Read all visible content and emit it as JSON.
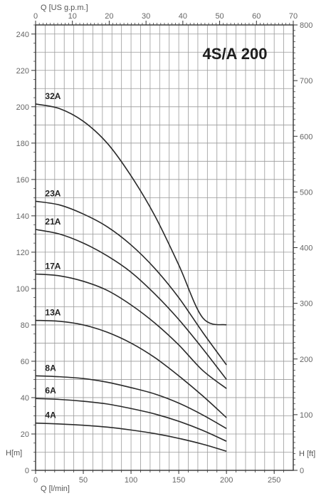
{
  "chart_data": {
    "type": "line",
    "title": "4S/A 200",
    "x_bottom": {
      "label": "Q [l/min]",
      "range": [
        0,
        270
      ],
      "ticks": [
        0,
        50,
        100,
        150,
        200,
        250
      ]
    },
    "x_top": {
      "label": "Q [US g.p.m.]",
      "range": [
        0,
        70
      ],
      "ticks": [
        0,
        10,
        20,
        30,
        40,
        50,
        60,
        70
      ]
    },
    "y_left": {
      "label": "H[m]",
      "range": [
        0,
        245
      ],
      "ticks": [
        0,
        20,
        40,
        60,
        80,
        100,
        120,
        140,
        160,
        180,
        200,
        220,
        240
      ]
    },
    "y_right": {
      "label": "H [ft]",
      "range": [
        0,
        800
      ],
      "ticks": [
        0,
        100,
        200,
        300,
        400,
        500,
        600,
        700,
        800
      ]
    },
    "grid": true,
    "series": [
      {
        "name": "32A",
        "x": [
          0,
          25,
          50,
          75,
          100,
          125,
          150,
          175,
          200
        ],
        "y": [
          201.5,
          199,
          192,
          180,
          162,
          140,
          113,
          84,
          80
        ]
      },
      {
        "name": "23A",
        "x": [
          0,
          25,
          50,
          75,
          100,
          125,
          150,
          175,
          200
        ],
        "y": [
          148,
          146,
          141,
          134,
          124,
          111,
          95,
          76,
          58
        ]
      },
      {
        "name": "21A",
        "x": [
          0,
          25,
          50,
          75,
          100,
          125,
          150,
          175,
          200
        ],
        "y": [
          132.5,
          130,
          125,
          118,
          109,
          97,
          83,
          67,
          50
        ]
      },
      {
        "name": "17A",
        "x": [
          0,
          25,
          50,
          75,
          100,
          125,
          150,
          175,
          200
        ],
        "y": [
          108,
          107,
          104,
          99,
          91,
          81,
          69,
          55,
          45
        ]
      },
      {
        "name": "13A",
        "x": [
          0,
          25,
          50,
          75,
          100,
          125,
          150,
          175,
          200
        ],
        "y": [
          82.5,
          82,
          80,
          76,
          70,
          62,
          52,
          41,
          29
        ]
      },
      {
        "name": "8A",
        "x": [
          0,
          25,
          50,
          75,
          100,
          125,
          150,
          175,
          200
        ],
        "y": [
          52,
          51.5,
          50.5,
          48.5,
          45.5,
          42,
          37,
          30.5,
          23
        ]
      },
      {
        "name": "6A",
        "x": [
          0,
          25,
          50,
          75,
          100,
          125,
          150,
          175,
          200
        ],
        "y": [
          39.5,
          39,
          38,
          36.5,
          34,
          31,
          27,
          22,
          16
        ]
      },
      {
        "name": "4A",
        "x": [
          0,
          25,
          50,
          75,
          100,
          125,
          150,
          175,
          200
        ],
        "y": [
          26,
          25.5,
          24.8,
          23.8,
          22.2,
          20.2,
          17.6,
          14.4,
          10.5
        ]
      }
    ]
  }
}
